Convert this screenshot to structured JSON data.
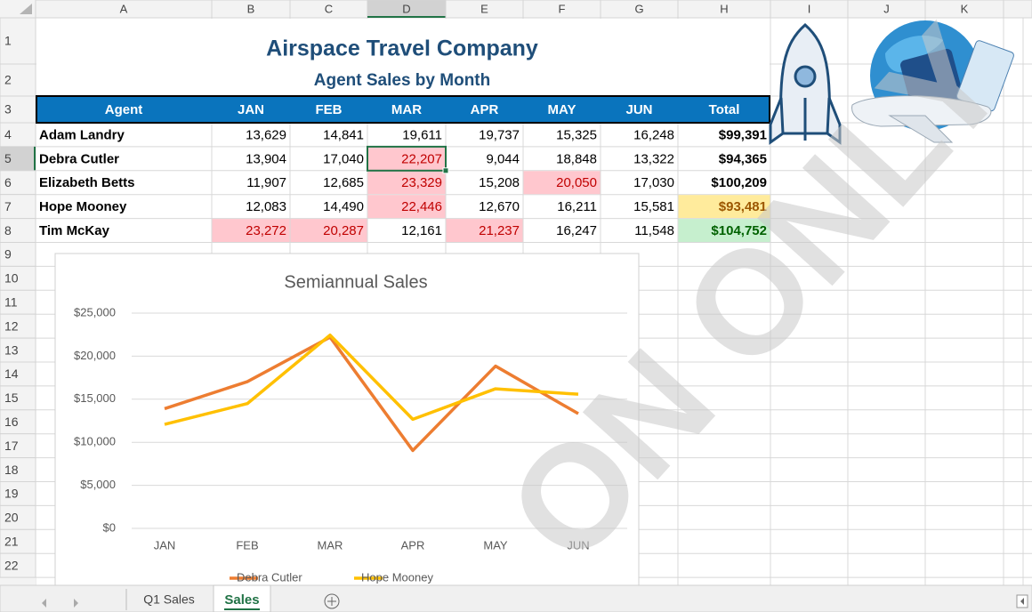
{
  "spreadsheet": {
    "column_headers": [
      "A",
      "B",
      "C",
      "D",
      "E",
      "F",
      "G",
      "H",
      "I",
      "J",
      "K"
    ],
    "row_headers": [
      "1",
      "2",
      "3",
      "4",
      "5",
      "6",
      "7",
      "8",
      "9",
      "10",
      "11",
      "12",
      "13",
      "14",
      "15",
      "16",
      "17",
      "18",
      "19",
      "20",
      "21",
      "22"
    ],
    "title": "Airspace Travel Company",
    "subtitle": "Agent Sales by Month",
    "table": {
      "header": [
        "Agent",
        "JAN",
        "FEB",
        "MAR",
        "APR",
        "MAY",
        "JUN",
        "Total"
      ],
      "rows": [
        [
          "Adam Landry",
          "13,629",
          "14,841",
          "19,611",
          "19,737",
          "15,325",
          "16,248",
          "$99,391"
        ],
        [
          "Debra Cutler",
          "13,904",
          "17,040",
          "22,207",
          "9,044",
          "18,848",
          "13,322",
          "$94,365"
        ],
        [
          "Elizabeth Betts",
          "11,907",
          "12,685",
          "23,329",
          "15,208",
          "20,050",
          "17,030",
          "$100,209"
        ],
        [
          "Hope Mooney",
          "12,083",
          "14,490",
          "22,446",
          "12,670",
          "16,211",
          "15,581",
          "$93,481"
        ],
        [
          "Tim McKay",
          "23,272",
          "20,287",
          "12,161",
          "21,237",
          "16,247",
          "11,548",
          "$104,752"
        ]
      ]
    },
    "sheet_tabs": [
      "Q1 Sales",
      "Sales"
    ],
    "watermark": "ON ONLY"
  },
  "chart_data": {
    "type": "line",
    "title": "Semiannual Sales",
    "categories": [
      "JAN",
      "FEB",
      "MAR",
      "APR",
      "MAY",
      "JUN"
    ],
    "series": [
      {
        "name": "Debra Cutler",
        "color": "#ed7d31",
        "values": [
          13904,
          17040,
          22207,
          9044,
          18848,
          13322
        ]
      },
      {
        "name": "Hope Mooney",
        "color": "#ffc000",
        "values": [
          12083,
          14490,
          22446,
          12670,
          16211,
          15581
        ]
      }
    ],
    "ylim": [
      0,
      25000
    ],
    "yticks": [
      {
        "value": 0,
        "label": "$0"
      },
      {
        "value": 5000,
        "label": "$5,000"
      },
      {
        "value": 10000,
        "label": "$10,000"
      },
      {
        "value": 15000,
        "label": "$15,000"
      },
      {
        "value": 20000,
        "label": "$20,000"
      },
      {
        "value": 25000,
        "label": "$25,000"
      }
    ],
    "grid": true,
    "legend": "bottom"
  }
}
